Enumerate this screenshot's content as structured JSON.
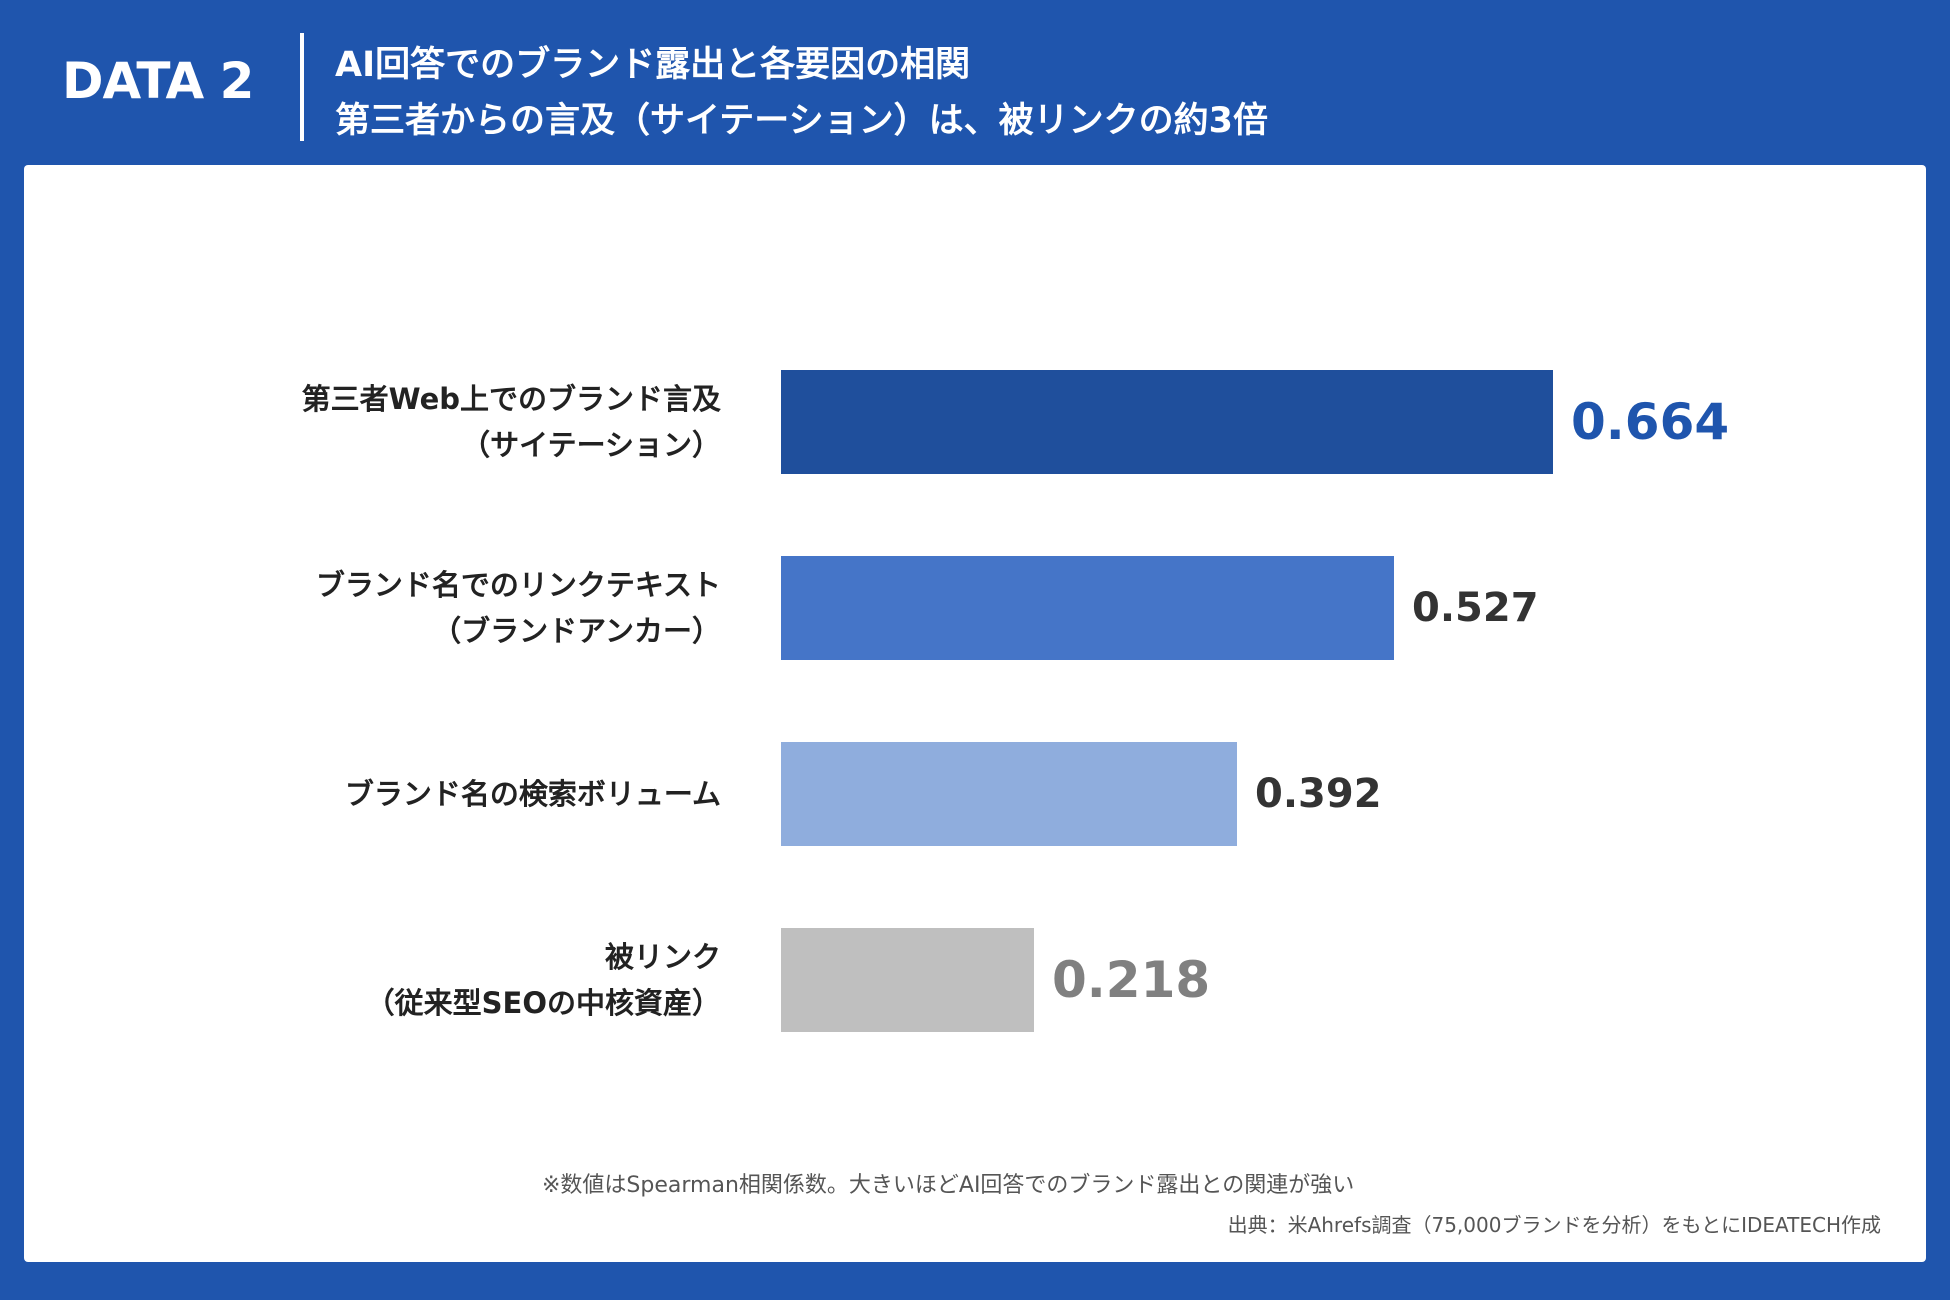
{
  "header": {
    "tag": "DATA 2",
    "title_line1": "AI回答でのブランド露出と各要因の相関",
    "title_line2": "第三者からの言及（サイテーション）は、被リンクの約3倍"
  },
  "chart_data": {
    "type": "bar",
    "orientation": "horizontal",
    "categories": [
      {
        "line1": "第三者Web上でのブランド言及",
        "line2": "（サイテーション）"
      },
      {
        "line1": "ブランド名でのリンクテキスト",
        "line2": "（ブランドアンカー）"
      },
      {
        "line1": "ブランド名の検索ボリューム",
        "line2": ""
      },
      {
        "line1": "被リンク",
        "line2": "（従来型SEOの中核資産）"
      }
    ],
    "values": [
      0.664,
      0.527,
      0.392,
      0.218
    ],
    "value_labels": [
      "0.664",
      "0.527",
      "0.392",
      "0.218"
    ],
    "bar_colors": [
      "#1f4f9c",
      "#4575c8",
      "#8faddd",
      "#bfbfbf"
    ],
    "label_colors": [
      "#1f55ad",
      "#333333",
      "#333333",
      "#808080"
    ],
    "xlim": [
      0,
      0.664
    ],
    "grid": false,
    "legend": "none"
  },
  "footer": {
    "note": "※数値はSpearman相関係数。大きいほどAI回答でのブランド露出との関連が強い",
    "source": "出典：米Ahrefs調査（75,000ブランドを分析）をもとにIDEATECH作成"
  }
}
